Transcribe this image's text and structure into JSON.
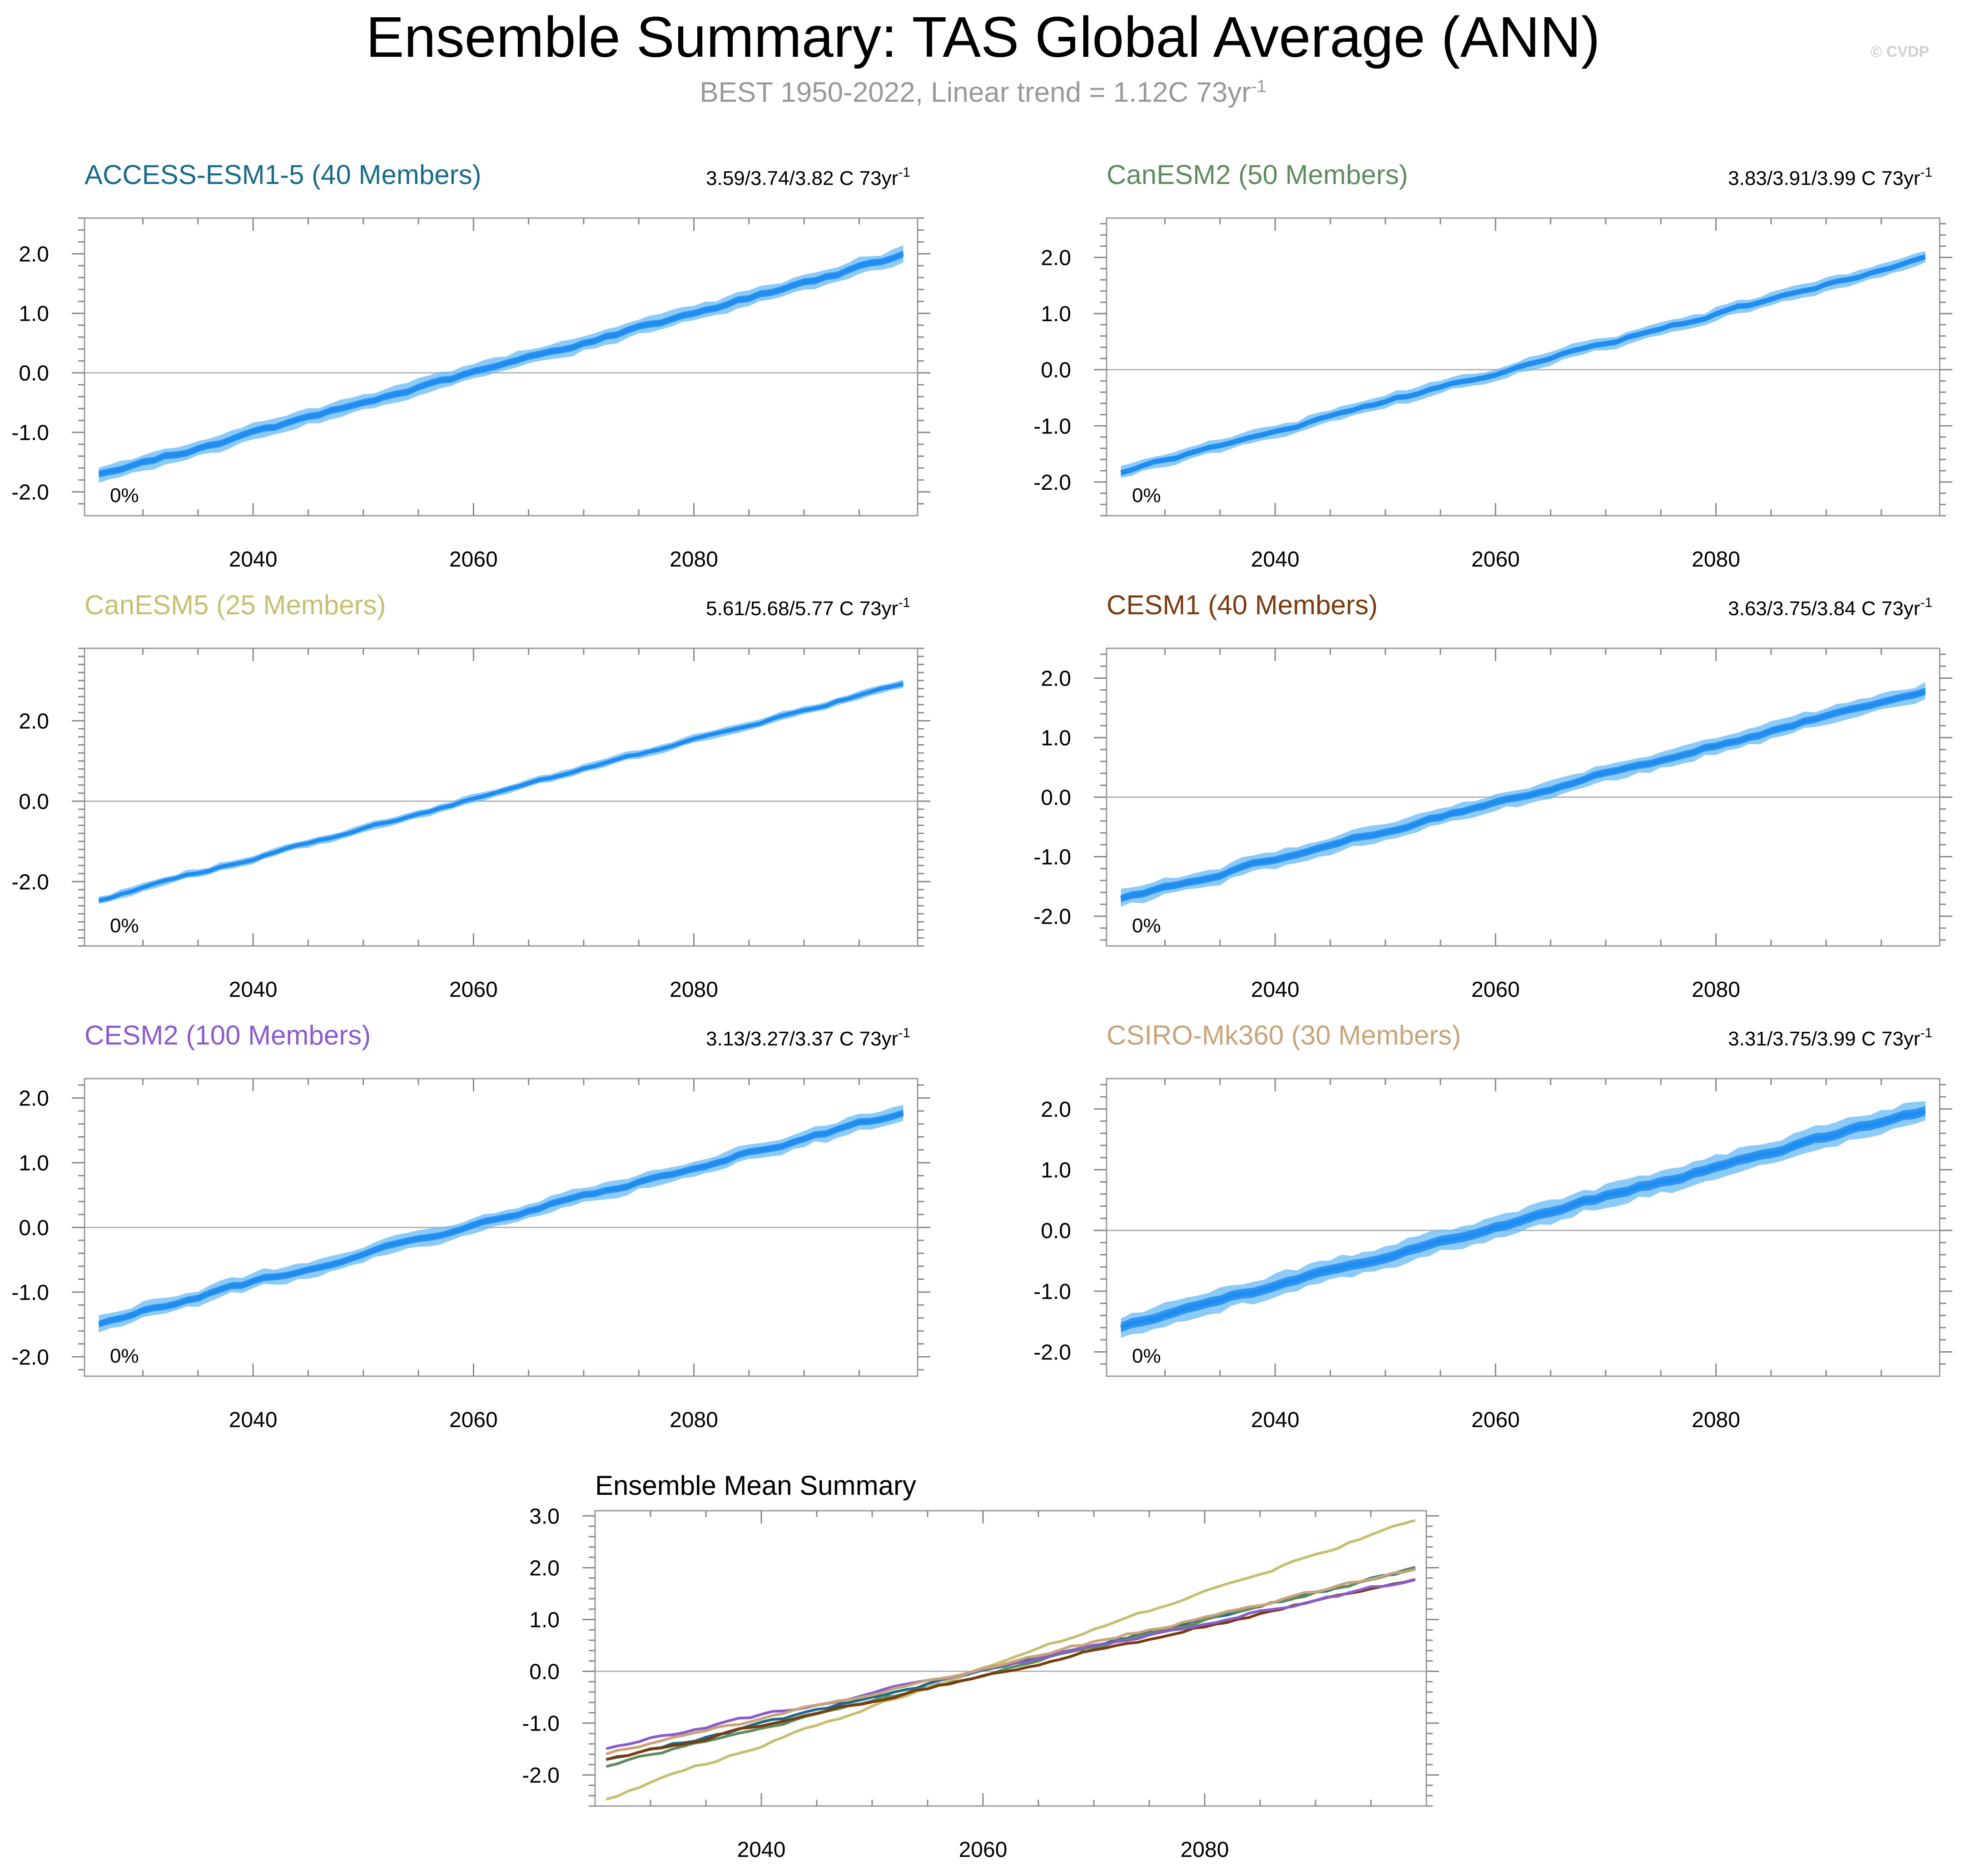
{
  "title": "Ensemble Summary: TAS Global Average (ANN)",
  "subtitle": {
    "main": "BEST 1950-2022, Linear trend = 1.12C 73yr",
    "superscript": "-1"
  },
  "watermark": "© CVDP",
  "chart_data": {
    "type": "line",
    "x_range": [
      2026,
      2099
    ],
    "x_ticks": [
      2040,
      2060,
      2080
    ],
    "x_tick_labels": [
      "2040",
      "2060",
      "2080"
    ],
    "band_color": "#66b8f5",
    "line_color": "#1e8cf0",
    "zero_line_color": "#b4b4b4",
    "panels": [
      {
        "id": "access",
        "name": "ACCESS-ESM1-5 (40 Members)",
        "color": "#1a6b8a",
        "trend": {
          "text": "3.59/3.74/3.82 C 73yr",
          "superscript": "-1"
        },
        "percent": "0%",
        "ylim": [
          -2.4,
          2.6
        ],
        "y_ticks": [
          -2,
          -1,
          0,
          1,
          2
        ],
        "y_tick_labels": [
          "-2.0",
          "-1.0",
          "0.0",
          "1.0",
          "2.0"
        ],
        "start": -1.72,
        "end": 1.97,
        "spread": 0.13
      },
      {
        "id": "canesm2",
        "name": "CanESM2 (50 Members)",
        "color": "#5e8c5e",
        "trend": {
          "text": "3.83/3.91/3.99 C 73yr",
          "superscript": "-1"
        },
        "percent": "0%",
        "ylim": [
          -2.6,
          2.7
        ],
        "y_ticks": [
          -2,
          -1,
          0,
          1,
          2
        ],
        "y_tick_labels": [
          "-2.0",
          "-1.0",
          "0.0",
          "1.0",
          "2.0"
        ],
        "start": -1.82,
        "end": 1.98,
        "spread": 0.11
      },
      {
        "id": "canesm5",
        "name": "CanESM5 (25 Members)",
        "color": "#c8bf72",
        "trend": {
          "text": "5.61/5.68/5.77 C 73yr",
          "superscript": "-1"
        },
        "percent": "0%",
        "ylim": [
          -3.6,
          3.8
        ],
        "y_ticks": [
          -2,
          0,
          2
        ],
        "y_tick_labels": [
          "-2.0",
          "0.0",
          "2.0"
        ],
        "start": -2.45,
        "end": 2.92,
        "spread": 0.1
      },
      {
        "id": "cesm1",
        "name": "CESM1 (40 Members)",
        "color": "#7a3b0e",
        "trend": {
          "text": "3.63/3.75/3.84 C 73yr",
          "superscript": "-1"
        },
        "percent": "0%",
        "ylim": [
          -2.5,
          2.5
        ],
        "y_ticks": [
          -2,
          -1,
          0,
          1,
          2
        ],
        "y_tick_labels": [
          "-2.0",
          "-1.0",
          "0.0",
          "1.0",
          "2.0"
        ],
        "start": -1.72,
        "end": 1.79,
        "spread": 0.14
      },
      {
        "id": "cesm2",
        "name": "CESM2 (100 Members)",
        "color": "#8a5ccc",
        "trend": {
          "text": "3.13/3.27/3.37 C 73yr",
          "superscript": "-1"
        },
        "percent": "0%",
        "ylim": [
          -2.3,
          2.3
        ],
        "y_ticks": [
          -2,
          -1,
          0,
          1,
          2
        ],
        "y_tick_labels": [
          "-2.0",
          "-1.0",
          "0.0",
          "1.0",
          "2.0"
        ],
        "start": -1.48,
        "end": 1.78,
        "spread": 0.12
      },
      {
        "id": "csiro",
        "name": "CSIRO-Mk360 (30 Members)",
        "color": "#c9a47a",
        "trend": {
          "text": "3.31/3.75/3.99 C 73yr",
          "superscript": "-1"
        },
        "percent": "0%",
        "ylim": [
          -2.4,
          2.5
        ],
        "y_ticks": [
          -2,
          -1,
          0,
          1,
          2
        ],
        "y_tick_labels": [
          "-2.0",
          "-1.0",
          "0.0",
          "1.0",
          "2.0"
        ],
        "start": -1.6,
        "end": 1.98,
        "spread": 0.18
      }
    ],
    "ensemble_mean": {
      "title": "Ensemble Mean Summary",
      "ylim": [
        -2.6,
        3.1
      ],
      "y_ticks": [
        -2,
        -1,
        0,
        1,
        2,
        3
      ],
      "y_tick_labels": [
        "-2.0",
        "-1.0",
        "0.0",
        "1.0",
        "2.0",
        "3.0"
      ]
    }
  }
}
